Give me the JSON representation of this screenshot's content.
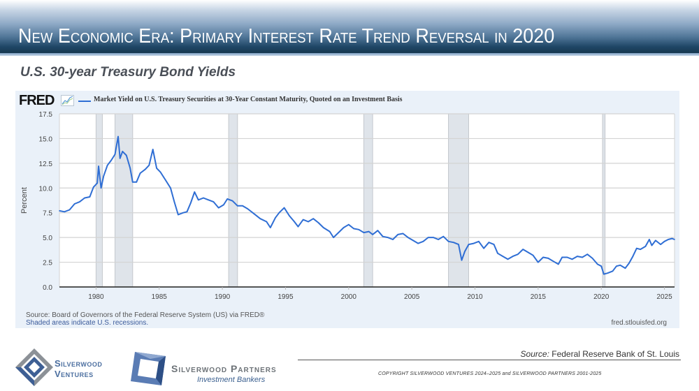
{
  "header": {
    "title": "New Economic Era: Primary Interest Rate Trend Reversal in 2020",
    "subtitle": "U.S. 30-year Treasury Bond Yields"
  },
  "fred": {
    "logo": "FRED",
    "icon": "line-chart-icon",
    "source": "Source: Board of Governors of the Federal Reserve System (US) via FRED®",
    "shaded_note": "Shaded areas indicate U.S. recessions.",
    "url": "fred.stlouisfed.org"
  },
  "footer": {
    "source_label": "Source:",
    "source_value": " Federal Reserve Bank of St. Louis",
    "copyright": "COPYRIGHT SILVERWOOD VENTURES 2024–2025 and SILVERWOOD PARTNERS 2001-2025",
    "logo1_line1": "Silverwood",
    "logo1_line2": "Ventures",
    "logo2_name": "Silverwood Partners",
    "logo2_sub": "Investment Bankers"
  },
  "colors": {
    "line": "#2f6ed4",
    "recession": "#dfe4ea",
    "panel": "#eaf1f9",
    "banner_dark": "#17384f"
  },
  "chart_data": {
    "type": "line",
    "title": "Market Yield on U.S. Treasury Securities at 30-Year Constant Maturity, Quoted on an Investment Basis",
    "xlabel": "",
    "ylabel": "Percent",
    "xlim": [
      1977.1,
      2025.8
    ],
    "ylim": [
      0,
      17.5
    ],
    "yticks": [
      0.0,
      2.5,
      5.0,
      7.5,
      10.0,
      12.5,
      15.0,
      17.5
    ],
    "ytick_labels": [
      "0.0",
      "2.5",
      "5.0",
      "7.5",
      "10.0",
      "12.5",
      "15.0",
      "17.5"
    ],
    "xticks": [
      1980,
      1985,
      1990,
      1995,
      2000,
      2005,
      2010,
      2015,
      2020,
      2025
    ],
    "xtick_labels": [
      "1980",
      "1985",
      "1990",
      "1995",
      "2000",
      "2005",
      "2010",
      "2015",
      "2020",
      "2025"
    ],
    "grid": true,
    "legend": "top-left",
    "recessions": [
      [
        1980.0,
        1980.5
      ],
      [
        1981.5,
        1982.9
      ],
      [
        1990.5,
        1991.2
      ],
      [
        2001.2,
        2001.9
      ],
      [
        2007.9,
        2009.5
      ],
      [
        2020.1,
        2020.3
      ]
    ],
    "series": [
      {
        "name": "Market Yield on U.S. Treasury Securities at 30-Year Constant Maturity, Quoted on an Investment Basis",
        "x": [
          1977.1,
          1977.5,
          1977.9,
          1978.3,
          1978.7,
          1979.1,
          1979.5,
          1979.8,
          1980.1,
          1980.2,
          1980.4,
          1980.6,
          1980.9,
          1981.2,
          1981.5,
          1981.75,
          1981.9,
          1982.1,
          1982.4,
          1982.7,
          1982.9,
          1983.2,
          1983.5,
          1983.9,
          1984.2,
          1984.5,
          1984.8,
          1985.1,
          1985.5,
          1985.9,
          1986.2,
          1986.5,
          1986.9,
          1987.2,
          1987.5,
          1987.8,
          1988.1,
          1988.5,
          1988.9,
          1989.3,
          1989.7,
          1990.1,
          1990.4,
          1990.8,
          1991.2,
          1991.6,
          1992.0,
          1992.5,
          1993.0,
          1993.5,
          1993.8,
          1994.2,
          1994.5,
          1994.9,
          1995.3,
          1995.7,
          1996.0,
          1996.4,
          1996.8,
          1997.2,
          1997.6,
          1998.0,
          1998.5,
          1998.8,
          1999.2,
          1999.6,
          2000.0,
          2000.4,
          2000.8,
          2001.2,
          2001.6,
          2001.9,
          2002.3,
          2002.7,
          2003.1,
          2003.5,
          2003.9,
          2004.3,
          2004.7,
          2005.1,
          2005.5,
          2005.9,
          2006.3,
          2006.7,
          2007.1,
          2007.5,
          2007.9,
          2008.3,
          2008.7,
          2008.95,
          2009.2,
          2009.5,
          2009.9,
          2010.3,
          2010.7,
          2011.1,
          2011.5,
          2011.8,
          2012.2,
          2012.6,
          2013.0,
          2013.4,
          2013.8,
          2014.2,
          2014.6,
          2015.0,
          2015.4,
          2015.8,
          2016.2,
          2016.6,
          2016.9,
          2017.3,
          2017.7,
          2018.1,
          2018.5,
          2018.9,
          2019.3,
          2019.7,
          2020.0,
          2020.2,
          2020.5,
          2020.9,
          2021.2,
          2021.5,
          2021.9,
          2022.2,
          2022.5,
          2022.8,
          2023.1,
          2023.5,
          2023.8,
          2024.0,
          2024.3,
          2024.7,
          2025.0,
          2025.3,
          2025.6,
          2025.8
        ],
        "values": [
          7.7,
          7.6,
          7.8,
          8.4,
          8.6,
          9.0,
          9.1,
          10.1,
          10.5,
          12.2,
          10.0,
          11.2,
          12.3,
          12.8,
          13.4,
          15.2,
          13.0,
          13.7,
          13.3,
          12.0,
          10.6,
          10.6,
          11.5,
          11.9,
          12.3,
          13.9,
          12.0,
          11.6,
          10.8,
          10.0,
          8.6,
          7.3,
          7.5,
          7.6,
          8.5,
          9.6,
          8.8,
          9.0,
          8.8,
          8.6,
          8.0,
          8.3,
          8.9,
          8.7,
          8.2,
          8.2,
          7.9,
          7.4,
          6.9,
          6.6,
          6.0,
          7.0,
          7.5,
          8.0,
          7.2,
          6.6,
          6.1,
          6.8,
          6.6,
          6.9,
          6.5,
          6.0,
          5.6,
          5.0,
          5.5,
          6.0,
          6.3,
          5.9,
          5.8,
          5.5,
          5.6,
          5.3,
          5.7,
          5.1,
          5.0,
          4.8,
          5.3,
          5.4,
          5.0,
          4.7,
          4.4,
          4.6,
          5.0,
          5.0,
          4.8,
          5.1,
          4.6,
          4.5,
          4.3,
          2.7,
          3.6,
          4.3,
          4.4,
          4.6,
          3.9,
          4.5,
          4.3,
          3.4,
          3.1,
          2.8,
          3.1,
          3.3,
          3.8,
          3.5,
          3.2,
          2.5,
          3.0,
          2.9,
          2.6,
          2.3,
          3.0,
          3.0,
          2.8,
          3.1,
          3.0,
          3.3,
          2.9,
          2.3,
          2.1,
          1.3,
          1.4,
          1.6,
          2.1,
          2.2,
          1.9,
          2.4,
          3.1,
          3.9,
          3.8,
          4.1,
          4.8,
          4.2,
          4.7,
          4.3,
          4.6,
          4.8,
          4.9,
          4.8
        ]
      }
    ]
  }
}
